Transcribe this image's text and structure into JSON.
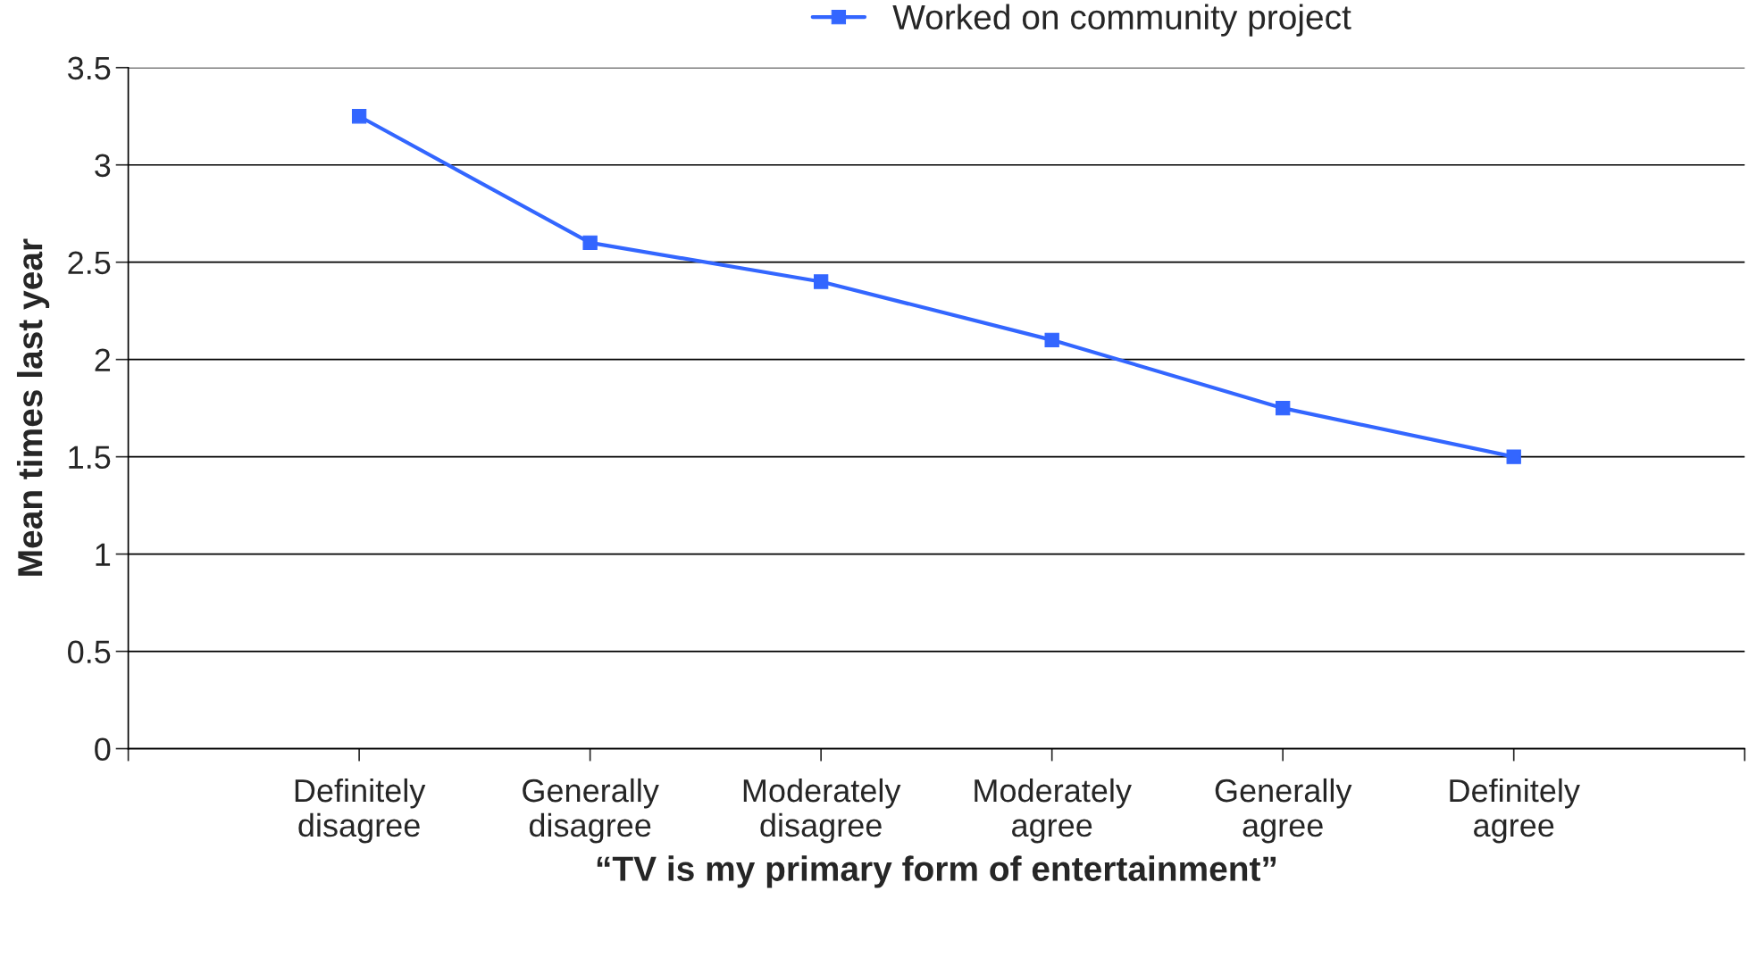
{
  "chart_data": {
    "type": "line",
    "xlabel": "“TV is my primary form of entertainment”",
    "ylabel": "Mean times last year",
    "categories": [
      "Definitely\ndisagree",
      "Generally\ndisagree",
      "Moderately\ndisagree",
      "Moderately\nagree",
      "Generally\nagree",
      "Definitely\nagree"
    ],
    "series": [
      {
        "name": "Worked on community project",
        "color": "#3366ff",
        "values": [
          3.25,
          2.6,
          2.4,
          2.1,
          1.75,
          1.5
        ]
      }
    ],
    "ylim": [
      0,
      3.5
    ],
    "yticks": [
      0,
      0.5,
      1,
      1.5,
      2,
      2.5,
      3,
      3.5
    ],
    "grid": "y",
    "legend": "top",
    "marker": "square",
    "line_style": "solid"
  }
}
